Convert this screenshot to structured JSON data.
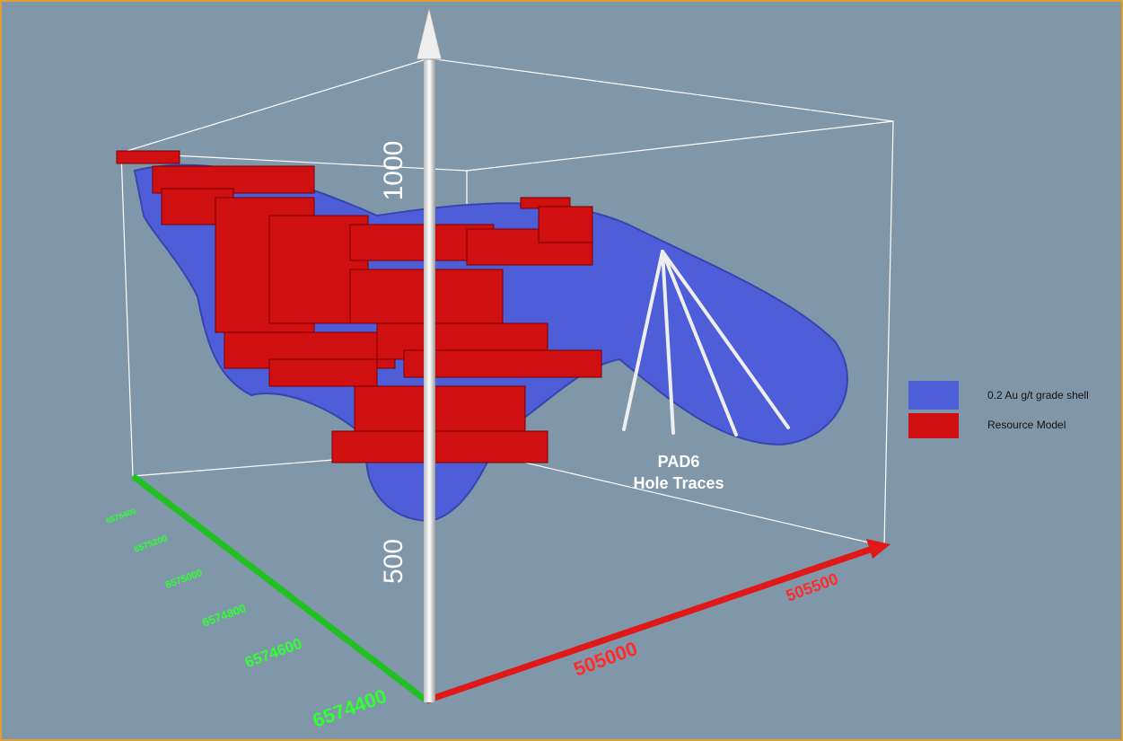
{
  "axes": {
    "vertical": {
      "labels": [
        "1000",
        "500"
      ]
    },
    "easting": {
      "labels": [
        "505000",
        "505500"
      ]
    },
    "northing": {
      "labels": [
        "6574400",
        "6574600",
        "6574800",
        "6575000",
        "6575200",
        "6575400"
      ]
    }
  },
  "annotation": {
    "lines": [
      "PAD6",
      "Hole Traces"
    ]
  },
  "legend": {
    "items": [
      "0.2 Au g/t grade shell",
      "Resource Model"
    ]
  }
}
